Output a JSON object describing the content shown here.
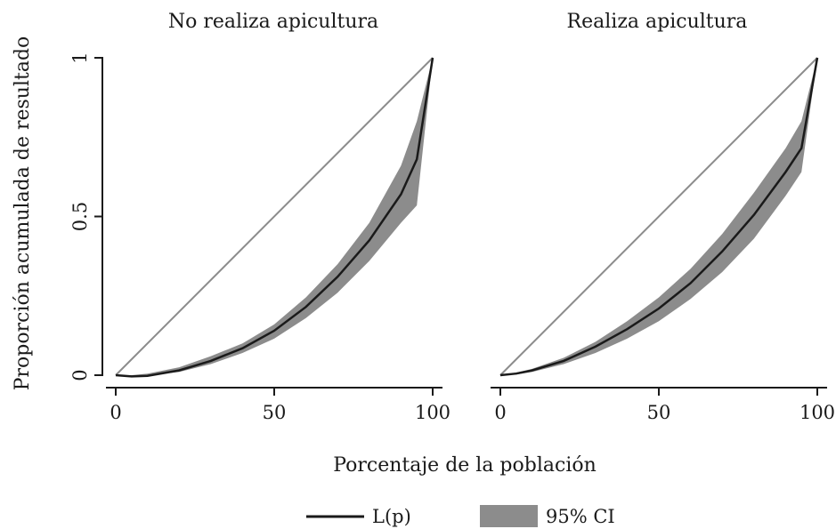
{
  "chart_data": {
    "type": "line",
    "ylabel": "Proporción acumulada de resultado",
    "xlabel": "Porcentaje de la población",
    "xlim": [
      0,
      100
    ],
    "ylim": [
      0,
      1
    ],
    "x_ticks": [
      "0",
      "50",
      "100"
    ],
    "y_ticks": [
      "0",
      "0.5",
      "1"
    ],
    "grid": false,
    "legend": {
      "position": "bottom",
      "items": [
        {
          "label": "L(p)",
          "kind": "line",
          "color": "#1a1a1a"
        },
        {
          "label": "95% CI",
          "kind": "band",
          "color": "#8c8c8c"
        }
      ]
    },
    "colors": {
      "curve": "#1a1a1a",
      "band": "#8c8c8c",
      "equality_line": "#8c8c8c"
    },
    "panels": [
      {
        "title": "No realiza apicultura",
        "x": [
          0,
          5,
          10,
          20,
          30,
          40,
          50,
          60,
          70,
          80,
          90,
          95,
          100
        ],
        "L": [
          0,
          -0.004,
          -0.002,
          0.015,
          0.045,
          0.085,
          0.14,
          0.215,
          0.31,
          0.425,
          0.57,
          0.68,
          1.0
        ],
        "ci_lower": [
          0,
          -0.003,
          0.0,
          0.01,
          0.035,
          0.07,
          0.115,
          0.18,
          0.26,
          0.36,
          0.48,
          0.535,
          1.0
        ],
        "ci_upper": [
          0,
          0.0,
          0.005,
          0.025,
          0.06,
          0.1,
          0.16,
          0.245,
          0.35,
          0.48,
          0.66,
          0.8,
          1.0
        ]
      },
      {
        "title": "Realiza apicultura",
        "x": [
          0,
          5,
          10,
          20,
          30,
          40,
          50,
          60,
          70,
          80,
          90,
          95,
          100
        ],
        "L": [
          0,
          0.005,
          0.015,
          0.045,
          0.09,
          0.145,
          0.21,
          0.29,
          0.39,
          0.505,
          0.64,
          0.715,
          1.0
        ],
        "ci_lower": [
          0,
          0.002,
          0.01,
          0.035,
          0.07,
          0.115,
          0.17,
          0.24,
          0.325,
          0.43,
          0.565,
          0.64,
          1.0
        ],
        "ci_upper": [
          0,
          0.008,
          0.02,
          0.055,
          0.105,
          0.17,
          0.245,
          0.335,
          0.445,
          0.575,
          0.715,
          0.8,
          1.0
        ]
      }
    ]
  }
}
